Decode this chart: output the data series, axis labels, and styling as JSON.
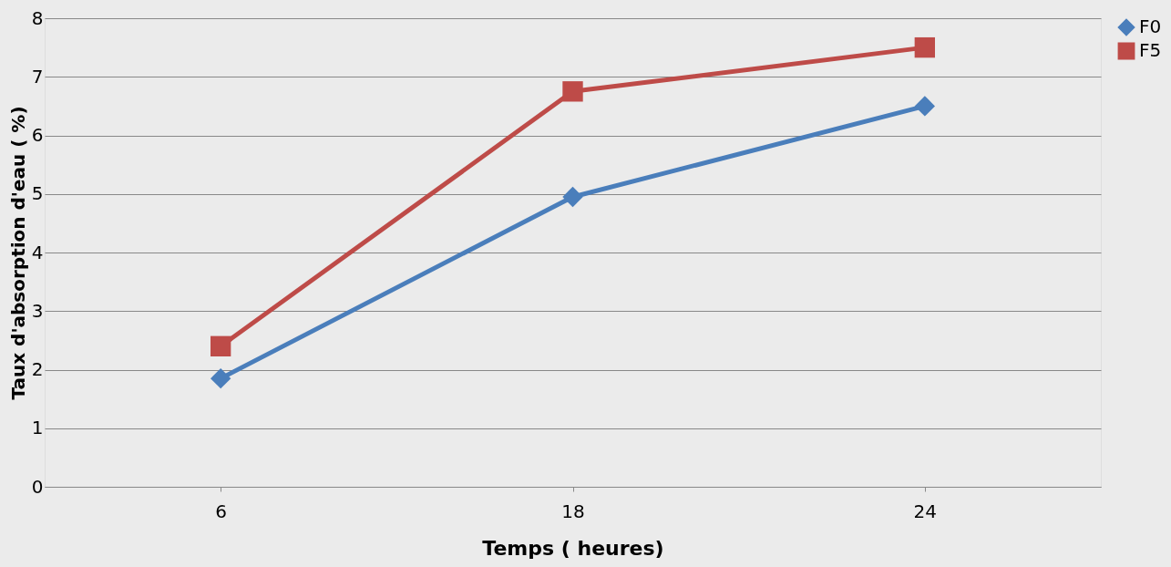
{
  "chart_data": {
    "type": "line",
    "xlabel": "Temps ( heures)",
    "ylabel": "Taux d'absorption d'eau ( %)",
    "categories": [
      "6",
      "18",
      "24"
    ],
    "series": [
      {
        "name": "F0",
        "color": "#4a7ebb",
        "marker": "diamond",
        "values": [
          1.85,
          4.95,
          6.5
        ]
      },
      {
        "name": "F5",
        "color": "#be4b48",
        "marker": "square",
        "values": [
          2.4,
          6.75,
          7.5
        ]
      }
    ],
    "ylim": [
      0,
      8
    ],
    "yticks": [
      0,
      1,
      2,
      3,
      4,
      5,
      6,
      7,
      8
    ],
    "grid": "y",
    "legend": "right",
    "line_style": "solid"
  }
}
